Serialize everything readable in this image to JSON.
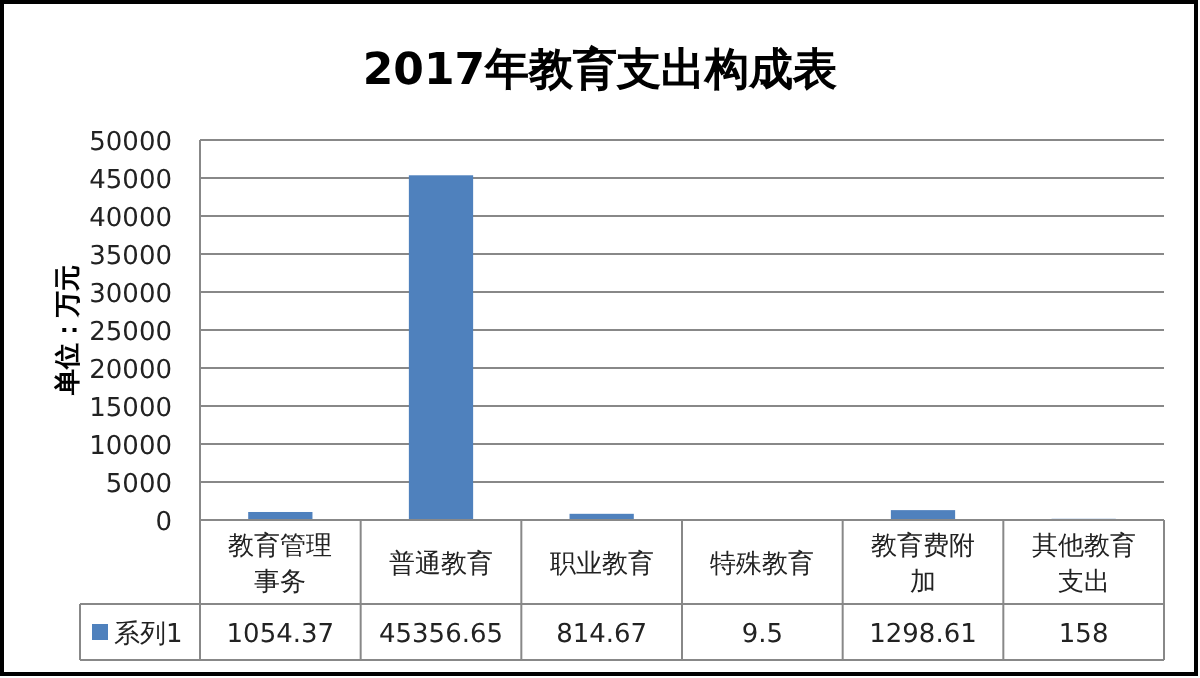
{
  "chart_data": {
    "type": "bar",
    "title": "2017年教育支出构成表",
    "ylabel": "单位：万元",
    "categories": [
      "教育管理事务",
      "普通教育",
      "职业教育",
      "特殊教育",
      "教育费附加",
      "其他教育支出"
    ],
    "series": [
      {
        "name": "系列1",
        "color": "#4f81bd",
        "values": [
          1054.37,
          45356.65,
          814.67,
          9.5,
          1298.61,
          158
        ]
      }
    ],
    "ylim": [
      0,
      50000
    ],
    "yticks": [
      0,
      5000,
      10000,
      15000,
      20000,
      25000,
      30000,
      35000,
      40000,
      45000,
      50000
    ],
    "grid": "y",
    "data_labels": true,
    "legend": "bottom"
  }
}
